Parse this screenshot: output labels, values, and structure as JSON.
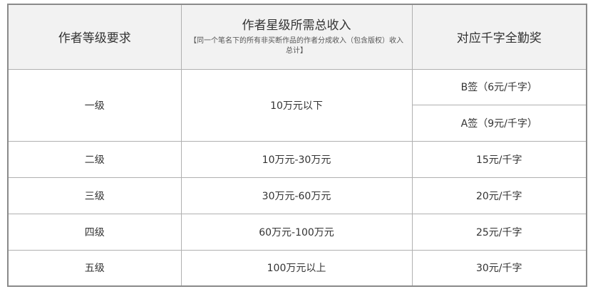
{
  "header": {
    "col1": "作者等级要求",
    "col2_title": "作者星级所需总收入",
    "col2_note": "【同一个笔名下的所有非买断作品的作者分成收入（包含版权）收入总计】",
    "col3": "对应千字全勤奖"
  },
  "rows": [
    {
      "level": "一级",
      "income": "10万元以下",
      "bonus": [
        "B签（6元/千字）",
        "A签（9元/千字）"
      ]
    },
    {
      "level": "二级",
      "income": "10万元-30万元",
      "bonus": [
        "15元/千字"
      ]
    },
    {
      "level": "三级",
      "income": "30万元-60万元",
      "bonus": [
        "20元/千字"
      ]
    },
    {
      "level": "四级",
      "income": "60万元-100万元",
      "bonus": [
        "25元/千字"
      ]
    },
    {
      "level": "五级",
      "income": "100万元以上",
      "bonus": [
        "30元/千字"
      ]
    }
  ]
}
